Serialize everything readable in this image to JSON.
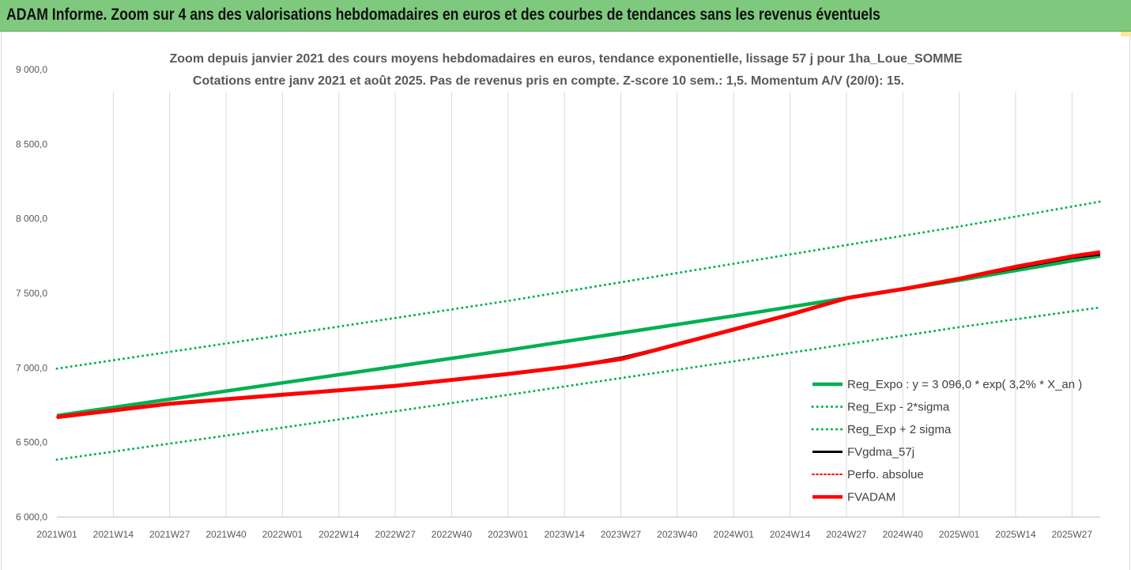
{
  "banner": {
    "title": "ADAM Informe. Zoom sur 4 ans des valorisations hebdomadaires en euros et des courbes de tendances sans les revenus éventuels",
    "color": "#7fc97f"
  },
  "chart_data": {
    "type": "line",
    "title": "Zoom depuis janvier 2021 des cours moyens hebdomadaires en euros, tendance exponentielle, lissage 57 j pour 1ha_Loue_SOMME",
    "subtitle": "Cotations entre janv 2021 et août 2025. Pas de revenus pris en compte. Z-score 10 sem.: 1,5. Momentum A/V (20/0): 15.",
    "xlabel": "",
    "ylabel": "",
    "ylim": [
      6000,
      9000
    ],
    "yticks": [
      6000,
      6500,
      7000,
      7500,
      8000,
      8500,
      9000
    ],
    "ytick_labels": [
      "6 000,0",
      "6 500,0",
      "7 000,0",
      "7 500,0",
      "8 000,0",
      "8 500,0",
      "9 000,0"
    ],
    "xticks": [
      "2021W01",
      "2021W14",
      "2021W27",
      "2021W40",
      "2022W01",
      "2022W14",
      "2022W27",
      "2022W40",
      "2023W01",
      "2023W14",
      "2023W27",
      "2023W40",
      "2024W01",
      "2024W14",
      "2024W27",
      "2024W40",
      "2025W01",
      "2025W14",
      "2025W27"
    ],
    "x_range_weeks": [
      0,
      240
    ],
    "grid": "vertical",
    "legend_position": "bottom-right",
    "series": [
      {
        "name": "Reg_Expo : y = 3 096,0 * exp( 3,2% *  X_an )",
        "style": "solid",
        "color": "#00b050",
        "width": 4.5,
        "x": [
          0,
          52,
          104,
          156,
          208,
          240
        ],
        "y": [
          6680,
          6900,
          7120,
          7350,
          7590,
          7750
        ]
      },
      {
        "name": "Reg_Exp - 2*sigma",
        "style": "dotted",
        "color": "#00b050",
        "width": 3,
        "x": [
          0,
          52,
          104,
          156,
          208,
          240
        ],
        "y": [
          6385,
          6600,
          6820,
          7045,
          7275,
          7405
        ]
      },
      {
        "name": "Reg_Exp + 2 sigma",
        "style": "dotted",
        "color": "#00b050",
        "width": 3,
        "x": [
          0,
          52,
          104,
          156,
          208,
          240
        ],
        "y": [
          6995,
          7220,
          7450,
          7700,
          7950,
          8115
        ]
      },
      {
        "name": "FVgdma_57j",
        "style": "solid",
        "color": "#000000",
        "width": 3,
        "x": [
          0,
          26,
          52,
          78,
          104,
          117,
          130,
          143,
          156,
          169,
          182,
          195,
          208,
          221,
          234,
          240
        ],
        "y": [
          6670,
          6760,
          6820,
          6880,
          6960,
          7005,
          7070,
          7160,
          7260,
          7360,
          7470,
          7530,
          7600,
          7670,
          7740,
          7760
        ]
      },
      {
        "name": "Perfo. absolue",
        "style": "dotted",
        "color": "#ff0000",
        "width": 2,
        "x": [
          0,
          26,
          52,
          78,
          104,
          117,
          130,
          143,
          156,
          169,
          182,
          195,
          208,
          221,
          234,
          240
        ],
        "y": [
          6670,
          6760,
          6820,
          6880,
          6960,
          7005,
          7065,
          7160,
          7260,
          7360,
          7470,
          7530,
          7600,
          7675,
          7745,
          7770
        ]
      },
      {
        "name": "FVADAM",
        "style": "solid",
        "color": "#ff0000",
        "width": 5,
        "x": [
          0,
          26,
          52,
          78,
          104,
          117,
          130,
          143,
          156,
          169,
          182,
          195,
          208,
          221,
          234,
          240
        ],
        "y": [
          6670,
          6760,
          6820,
          6880,
          6960,
          7005,
          7060,
          7160,
          7260,
          7360,
          7470,
          7530,
          7600,
          7680,
          7750,
          7775
        ]
      }
    ]
  }
}
